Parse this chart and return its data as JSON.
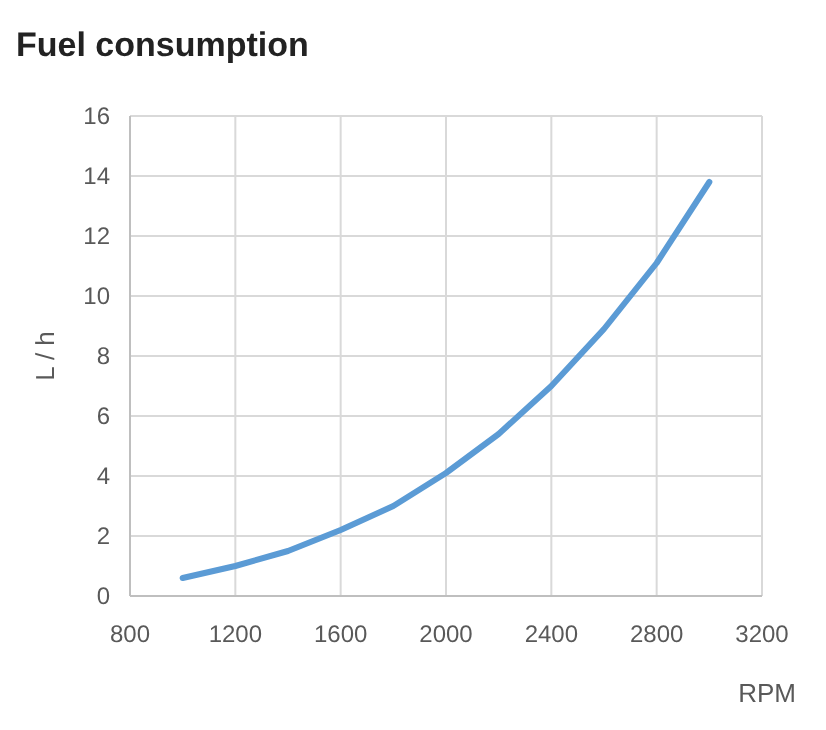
{
  "chart_data": {
    "type": "line",
    "title": "Fuel consumption",
    "xlabel": "RPM",
    "ylabel": "L / h",
    "x": [
      1000,
      1200,
      1400,
      1600,
      1800,
      2000,
      2200,
      2400,
      2600,
      2800,
      3000
    ],
    "series": [
      {
        "color": "#5b9bd5",
        "values": [
          0.6,
          1.0,
          1.5,
          2.2,
          3.0,
          4.1,
          5.4,
          7.0,
          8.9,
          11.1,
          13.8
        ]
      }
    ],
    "xlim": [
      800,
      3200
    ],
    "xticks": [
      800,
      1200,
      1600,
      2000,
      2400,
      2800,
      3200
    ],
    "ylim": [
      0,
      16
    ],
    "yticks": [
      0,
      2,
      4,
      6,
      8,
      10,
      12,
      14,
      16
    ],
    "grid": true,
    "marker": "none",
    "line_style": "solid"
  }
}
